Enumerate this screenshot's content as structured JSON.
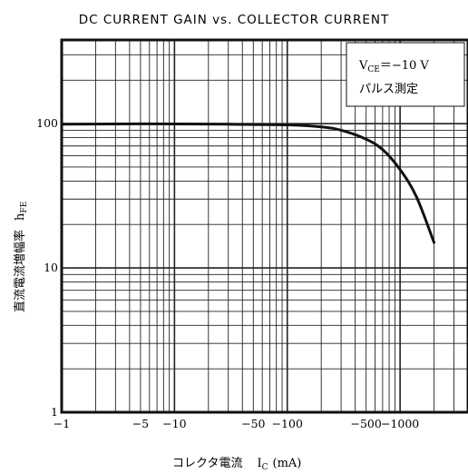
{
  "chart_data": {
    "type": "line",
    "title": "DC CURRENT GAIN vs. COLLECTOR CURRENT",
    "xlabel": "コレクタ電流　I C (mA)",
    "xlabel_main": "コレクタ電流",
    "xlabel_symbol": "I",
    "xlabel_sub": "C",
    "xlabel_unit": "(mA)",
    "ylabel": "直流電流増幅率　h",
    "ylabel_main": "直流電流増幅率",
    "ylabel_symbol": "h",
    "ylabel_sub": "FE",
    "x_scale": "log",
    "y_scale": "log",
    "x_range": [
      1,
      4000
    ],
    "y_range": [
      1,
      380
    ],
    "x_ticks": [
      {
        "value": 1,
        "label": "−1"
      },
      {
        "value": 5,
        "label": "−5"
      },
      {
        "value": 10,
        "label": "−10"
      },
      {
        "value": 50,
        "label": "−50"
      },
      {
        "value": 100,
        "label": "−100"
      },
      {
        "value": 500,
        "label": "−500"
      },
      {
        "value": 1000,
        "label": "−1000"
      }
    ],
    "y_ticks": [
      {
        "value": 1,
        "label": "1"
      },
      {
        "value": 10,
        "label": "10"
      },
      {
        "value": 100,
        "label": "100"
      }
    ],
    "grid": true,
    "annotation": {
      "line1_main": "V",
      "line1_sub": "CE",
      "line1_rest": "＝−10 V",
      "line2": "パルス測定"
    },
    "series": [
      {
        "x": [
          1,
          3,
          10,
          30,
          100,
          200,
          300,
          500,
          700,
          1000,
          1400,
          2000
        ],
        "y": [
          99,
          99.5,
          99.5,
          99,
          98,
          95,
          90,
          78,
          66,
          48,
          31,
          15
        ]
      }
    ]
  }
}
